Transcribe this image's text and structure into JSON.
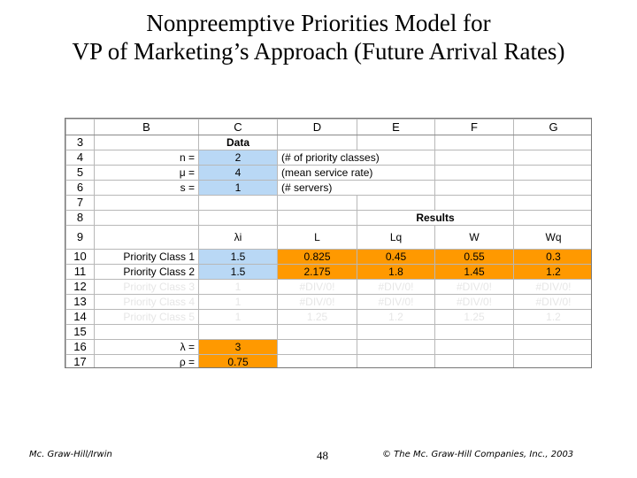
{
  "title": {
    "line1": "Nonpreemptive Priorities Model for",
    "line2": "VP of Marketing’s Approach (Future Arrival Rates)"
  },
  "columns": [
    "B",
    "C",
    "D",
    "E",
    "F",
    "G"
  ],
  "rows": [
    {
      "num": "3",
      "b": "",
      "c": "Data",
      "d": "",
      "e": "",
      "f": "",
      "g": ""
    },
    {
      "num": "4",
      "b": "n =",
      "c": "2",
      "d": "(# of priority classes)",
      "e": "",
      "f": "",
      "g": ""
    },
    {
      "num": "5",
      "b": "μ =",
      "c": "4",
      "d": "(mean service rate)",
      "e": "",
      "f": "",
      "g": ""
    },
    {
      "num": "6",
      "b": "s =",
      "c": "1",
      "d": "(# servers)",
      "e": "",
      "f": "",
      "g": ""
    },
    {
      "num": "7",
      "b": "",
      "c": "",
      "d": "",
      "e": "",
      "f": "",
      "g": ""
    },
    {
      "num": "8",
      "b": "",
      "c": "",
      "d": "",
      "e": "Results",
      "f": "",
      "g": ""
    },
    {
      "num": "9",
      "b": "",
      "c": "λi",
      "d": "L",
      "e": "Lq",
      "f": "W",
      "g": "Wq"
    },
    {
      "num": "10",
      "b": "Priority Class 1",
      "c": "1.5",
      "d": "0.825",
      "e": "0.45",
      "f": "0.55",
      "g": "0.3"
    },
    {
      "num": "11",
      "b": "Priority Class 2",
      "c": "1.5",
      "d": "2.175",
      "e": "1.8",
      "f": "1.45",
      "g": "1.2"
    },
    {
      "num": "12",
      "b": "Priority Class 3",
      "c": "1",
      "d": "#DIV/0!",
      "e": "#DIV/0!",
      "f": "#DIV/0!",
      "g": "#DIV/0!"
    },
    {
      "num": "13",
      "b": "Priority Class 4",
      "c": "1",
      "d": "#DIV/0!",
      "e": "#DIV/0!",
      "f": "#DIV/0!",
      "g": "#DIV/0!"
    },
    {
      "num": "14",
      "b": "Priority Class 5",
      "c": "1",
      "d": "1.25",
      "e": "1.2",
      "f": "1.25",
      "g": "1.2"
    },
    {
      "num": "15",
      "b": "",
      "c": "",
      "d": "",
      "e": "",
      "f": "",
      "g": ""
    },
    {
      "num": "16",
      "b": "λ =",
      "c": "3",
      "d": "",
      "e": "",
      "f": "",
      "g": ""
    },
    {
      "num": "17",
      "b": "ρ =",
      "c": "0.75",
      "d": "",
      "e": "",
      "f": "",
      "g": ""
    }
  ],
  "colors": {
    "input_blue": "#b9d8f5",
    "output_orange": "#ff9900"
  },
  "footer": {
    "left": "Mc. Graw-Hill/Irwin",
    "page": "48",
    "right": "© The Mc. Graw-Hill Companies, Inc., 2003"
  }
}
